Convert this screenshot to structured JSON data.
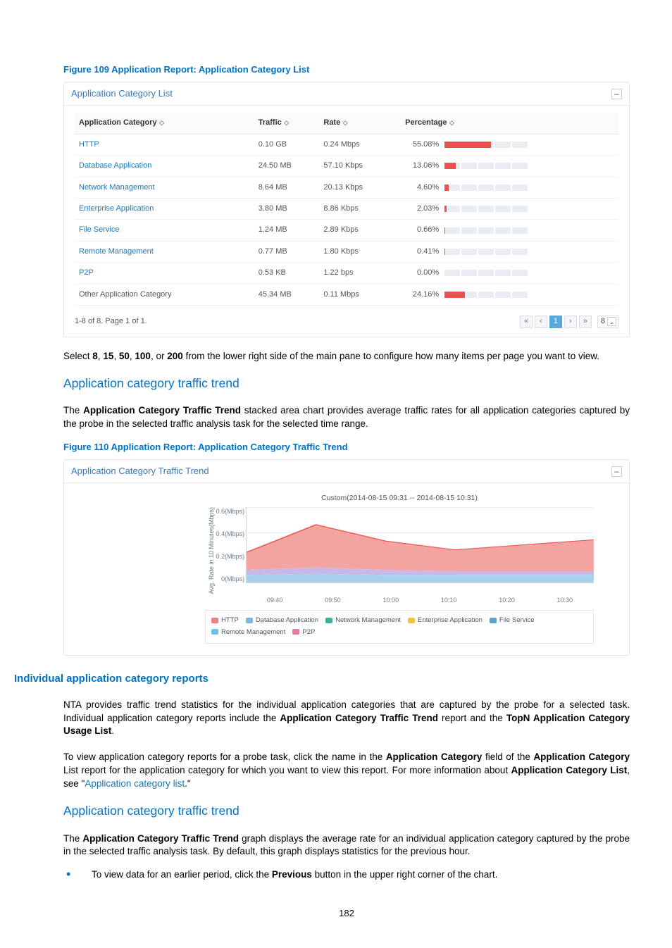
{
  "figure109": {
    "caption": "Figure 109 Application Report: Application Category List",
    "panel_title": "Application Category List",
    "columns": {
      "cat": "Application Category",
      "traffic": "Traffic",
      "rate": "Rate",
      "pct": "Percentage"
    },
    "rows": [
      {
        "cat": "HTTP",
        "traffic": "0.10 GB",
        "rate": "0.24 Mbps",
        "pct": "55.08%",
        "fill": 55.08,
        "link": true
      },
      {
        "cat": "Database Application",
        "traffic": "24.50 MB",
        "rate": "57.10 Kbps",
        "pct": "13.06%",
        "fill": 13.06,
        "link": true
      },
      {
        "cat": "Network Management",
        "traffic": "8.64 MB",
        "rate": "20.13 Kbps",
        "pct": "4.60%",
        "fill": 4.6,
        "link": true
      },
      {
        "cat": "Enterprise Application",
        "traffic": "3.80 MB",
        "rate": "8.86 Kbps",
        "pct": "2.03%",
        "fill": 2.03,
        "link": true
      },
      {
        "cat": "File Service",
        "traffic": "1.24 MB",
        "rate": "2.89 Kbps",
        "pct": "0.66%",
        "fill": 0.66,
        "link": true
      },
      {
        "cat": "Remote Management",
        "traffic": "0.77 MB",
        "rate": "1.80 Kbps",
        "pct": "0.41%",
        "fill": 0.41,
        "link": true
      },
      {
        "cat": "P2P",
        "traffic": "0.53 KB",
        "rate": "1.22 bps",
        "pct": "0.00%",
        "fill": 0.0,
        "link": true
      },
      {
        "cat": "Other Application Category",
        "traffic": "45.34 MB",
        "rate": "0.11 Mbps",
        "pct": "24.16%",
        "fill": 24.16,
        "link": false
      }
    ],
    "pager_text": "1-8 of 8. Page 1 of 1.",
    "page_current": "1",
    "per_page": "8"
  },
  "para1_a": "Select ",
  "para1_b": ", or ",
  "para1_c": " from the lower right side of the main pane to configure how many items per page you want to view.",
  "opts": {
    "o1": "8",
    "o2": "15",
    "o3": "50",
    "o4": "100",
    "o5": "200"
  },
  "sec1_title": "Application category traffic trend",
  "sec1_p_a": "The ",
  "sec1_p_bold": "Application Category Traffic Trend",
  "sec1_p_b": " stacked area chart provides average traffic rates for all application categories captured by the probe in the selected traffic analysis task for the selected time range.",
  "figure110": {
    "caption": "Figure 110 Application Report: Application Category Traffic Trend",
    "panel_title": "Application Category Traffic Trend",
    "chart_title": "Custom(2014-08-15 09:31 -- 2014-08-15 10:31)",
    "ylabel": "Avg. Rate in 10 Minutes(Mbps)",
    "yticks": [
      "0.6(Mbps)",
      "0.4(Mbps)",
      "0.2(Mbps)",
      "0(Mbps)"
    ],
    "xticks": [
      "09:40",
      "09:50",
      "10:00",
      "10:10",
      "10:20",
      "10:30"
    ],
    "legend": [
      {
        "label": "HTTP",
        "color": "#f08080"
      },
      {
        "label": "Database Application",
        "color": "#7bb6e0"
      },
      {
        "label": "Network Management",
        "color": "#3bb39a"
      },
      {
        "label": "Enterprise Application",
        "color": "#f3c04a"
      },
      {
        "label": "File Service",
        "color": "#5aa6c9"
      },
      {
        "label": "Remote Management",
        "color": "#6ec3e8"
      },
      {
        "label": "P2P",
        "color": "#e97ba4"
      }
    ],
    "area_main_color": "#f3a3a0",
    "area_mid_color": "#c9b7e8",
    "area_low_color": "#a9d0ec"
  },
  "sec2_title": "Individual application category reports",
  "sec2_p1_parts": {
    "a": "NTA provides traffic trend statistics for the individual application categories that are captured by the probe for a selected task. Individual application category reports include the ",
    "b": "Application Category Traffic Trend",
    "c": " report and the ",
    "d": "TopN Application Category Usage List",
    "e": "."
  },
  "sec2_p2_parts": {
    "a": "To view application category reports for a probe task, click the name in the ",
    "b": "Application Category",
    "c": " field of the ",
    "d": "Application Category",
    "e": " List report for the application category for which you want to view this report. For more information about ",
    "f": "Application Category List",
    "g": ", see \"",
    "link": "Application category list",
    "h": ".\""
  },
  "sec3_title": "Application category traffic trend",
  "sec3_p_parts": {
    "a": "The ",
    "b": "Application Category Traffic Trend",
    "c": " graph displays the average rate for an individual application category captured by the probe in the selected traffic analysis task. By default, this graph displays statistics for the previous hour."
  },
  "bullet_parts": {
    "a": "To view data for an earlier period, click the ",
    "b": "Previous",
    "c": " button in the upper right corner of the chart."
  },
  "page_number": "182"
}
